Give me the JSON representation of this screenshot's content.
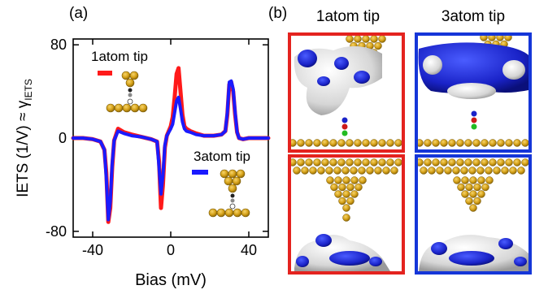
{
  "panels": {
    "a_label": "(a)",
    "b_label": "(b)"
  },
  "images": {
    "col1_title": "1atom tip",
    "col2_title": "3atom tip",
    "col1_color": "#e4231f",
    "col2_color": "#1536d8"
  },
  "chart_data": {
    "type": "line",
    "title": "",
    "xlabel": "Bias (mV)",
    "ylabel": "IETS (1/V) ≈ γIETS",
    "ylabel_main": "IETS (1/V) ≈ γ",
    "ylabel_sub": "IETS",
    "xlim": [
      -50,
      50
    ],
    "ylim": [
      -85,
      85
    ],
    "x_ticks": [
      -40,
      0,
      40
    ],
    "x_tick_labels": [
      "-40",
      "0",
      "40"
    ],
    "y_ticks": [
      -80,
      0,
      80
    ],
    "y_tick_labels": [
      "-80",
      "0",
      "80"
    ],
    "grid": false,
    "series": [
      {
        "name": "1atom tip",
        "color": "#ff1a1a",
        "x": [
          -50,
          -45,
          -40,
          -36,
          -34,
          -33,
          -32,
          -31,
          -30,
          -29,
          -27,
          -24,
          -20,
          -15,
          -10,
          -7,
          -6,
          -5,
          -4,
          -3,
          -2,
          -1,
          0,
          1,
          2,
          3,
          4,
          5,
          6,
          7,
          8,
          10,
          13,
          17,
          22,
          26,
          28,
          29,
          30,
          31,
          32,
          33,
          34,
          35,
          37,
          40,
          45,
          50
        ],
        "y": [
          0,
          0,
          -1,
          -3,
          -10,
          -30,
          -72,
          -60,
          -25,
          -2,
          8,
          5,
          3,
          1,
          -1,
          -3,
          -20,
          -60,
          -40,
          -8,
          2,
          6,
          10,
          18,
          35,
          55,
          60,
          40,
          20,
          10,
          8,
          6,
          4,
          2,
          2,
          3,
          6,
          20,
          46,
          48,
          40,
          20,
          5,
          0,
          -1,
          0,
          0,
          0
        ]
      },
      {
        "name": "3atom tip",
        "color": "#1a1aff",
        "x": [
          -50,
          -45,
          -40,
          -36,
          -34,
          -33,
          -32,
          -31,
          -30,
          -29,
          -27,
          -24,
          -20,
          -15,
          -10,
          -7,
          -6,
          -5,
          -4,
          -3,
          -2,
          -1,
          0,
          1,
          2,
          3,
          4,
          5,
          6,
          7,
          8,
          10,
          13,
          17,
          22,
          26,
          28,
          29,
          30,
          31,
          32,
          33,
          34,
          35,
          37,
          40,
          45,
          50
        ],
        "y": [
          0,
          0,
          -1,
          -3,
          -10,
          -35,
          -70,
          -55,
          -22,
          -2,
          6,
          4,
          2,
          1,
          -1,
          -3,
          -25,
          -48,
          -32,
          -6,
          2,
          5,
          8,
          12,
          22,
          32,
          35,
          25,
          14,
          8,
          6,
          5,
          3,
          2,
          2,
          3,
          6,
          22,
          48,
          49,
          42,
          22,
          5,
          0,
          -1,
          0,
          0,
          0
        ]
      }
    ],
    "legend": [
      {
        "label": "1atom tip",
        "color": "#ff1a1a",
        "position": "top-left"
      },
      {
        "label": "3atom tip",
        "color": "#1a1aff",
        "position": "bottom-right"
      }
    ]
  }
}
